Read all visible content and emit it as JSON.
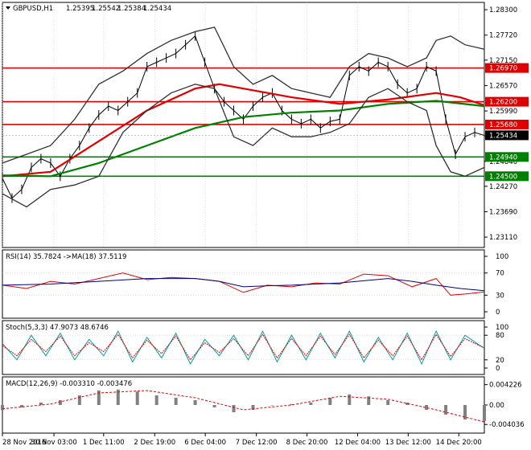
{
  "chart_data": [
    {
      "type": "line",
      "pane": "price",
      "title": "GBPUSD,H1",
      "ohlc": {
        "open": "1.25395",
        "high": "1.25542",
        "low": "1.25384",
        "close": "1.25434"
      },
      "y_tick_labels": [
        "1.28300",
        "1.27720",
        "1.27150",
        "1.26570",
        "1.25990",
        "1.25420",
        "1.24840",
        "1.24270",
        "1.23690",
        "1.23110"
      ],
      "ylim": [
        1.2302,
        1.2832
      ],
      "current_price": 1.25434,
      "current_price_label": "1.25434",
      "level_color_red": "#e00000",
      "level_color_green": "#008000",
      "horizontal_levels": [
        {
          "value": 1.2697,
          "label": "1.26970",
          "color": "#e00000"
        },
        {
          "value": 1.262,
          "label": "1.26200",
          "color": "#e00000"
        },
        {
          "value": 1.2568,
          "label": "1.25680",
          "color": "#e00000"
        },
        {
          "value": 1.2494,
          "label": "1.24940",
          "color": "#008000"
        },
        {
          "value": 1.245,
          "label": "1.24500",
          "color": "#008000"
        }
      ],
      "x_tick_labels": [
        "28 Nov 2016",
        "30 Nov 03:00",
        "1 Dec 11:00",
        "2 Dec 19:00",
        "6 Dec 04:00",
        "7 Dec 12:00",
        "8 Dec 20:00",
        "12 Dec 04:00",
        "13 Dec 12:00",
        "14 Dec 20:00"
      ],
      "x_tick_pos": [
        0,
        0.107,
        0.21,
        0.316,
        0.421,
        0.527,
        0.632,
        0.737,
        0.842,
        0.947
      ],
      "series": [
        {
          "kind": "close",
          "color": "#000000",
          "x": [
            0,
            0.02,
            0.04,
            0.06,
            0.08,
            0.1,
            0.12,
            0.14,
            0.16,
            0.18,
            0.2,
            0.22,
            0.24,
            0.26,
            0.28,
            0.3,
            0.32,
            0.34,
            0.36,
            0.38,
            0.4,
            0.42,
            0.44,
            0.46,
            0.48,
            0.5,
            0.52,
            0.54,
            0.56,
            0.58,
            0.6,
            0.62,
            0.64,
            0.66,
            0.68,
            0.7,
            0.72,
            0.74,
            0.76,
            0.78,
            0.8,
            0.82,
            0.84,
            0.86,
            0.88,
            0.9,
            0.92,
            0.94,
            0.96,
            0.98,
            1.0
          ],
          "y": [
            1.2445,
            1.24,
            1.242,
            1.247,
            1.249,
            1.248,
            1.245,
            1.249,
            1.252,
            1.256,
            1.259,
            1.261,
            1.26,
            1.262,
            1.264,
            1.27,
            1.271,
            1.272,
            1.273,
            1.275,
            1.277,
            1.271,
            1.265,
            1.262,
            1.26,
            1.258,
            1.261,
            1.263,
            1.264,
            1.26,
            1.258,
            1.257,
            1.258,
            1.256,
            1.2575,
            1.258,
            1.268,
            1.27,
            1.269,
            1.271,
            1.27,
            1.266,
            1.264,
            1.265,
            1.27,
            1.269,
            1.258,
            1.25,
            1.254,
            1.255,
            1.2543
          ]
        },
        {
          "kind": "ma",
          "name": "",
          "color": "#e00000",
          "x": [
            0,
            0.1,
            0.2,
            0.3,
            0.4,
            0.45,
            0.5,
            0.6,
            0.7,
            0.8,
            0.9,
            0.95,
            1.0
          ],
          "y": [
            1.245,
            1.246,
            1.253,
            1.26,
            1.265,
            1.266,
            1.265,
            1.263,
            1.2615,
            1.2625,
            1.264,
            1.263,
            1.2612
          ]
        },
        {
          "kind": "ma",
          "name": "",
          "color": "#008000",
          "x": [
            0,
            0.1,
            0.2,
            0.3,
            0.4,
            0.5,
            0.6,
            0.7,
            0.8,
            0.9,
            1.0
          ],
          "y": [
            1.2452,
            1.245,
            1.248,
            1.252,
            1.256,
            1.2585,
            1.2595,
            1.26,
            1.2615,
            1.2622,
            1.261
          ]
        },
        {
          "kind": "bollinger_upper",
          "color": "#303030",
          "x": [
            0,
            0.05,
            0.1,
            0.15,
            0.2,
            0.25,
            0.3,
            0.35,
            0.4,
            0.44,
            0.48,
            0.52,
            0.56,
            0.6,
            0.64,
            0.68,
            0.72,
            0.76,
            0.8,
            0.84,
            0.88,
            0.9,
            0.93,
            0.96,
            1.0
          ],
          "y": [
            1.248,
            1.25,
            1.252,
            1.258,
            1.266,
            1.269,
            1.273,
            1.276,
            1.278,
            1.279,
            1.27,
            1.266,
            1.268,
            1.265,
            1.264,
            1.263,
            1.27,
            1.273,
            1.272,
            1.27,
            1.272,
            1.276,
            1.277,
            1.275,
            1.274
          ]
        },
        {
          "kind": "bollinger_lower",
          "color": "#303030",
          "x": [
            0,
            0.05,
            0.1,
            0.15,
            0.2,
            0.25,
            0.3,
            0.35,
            0.4,
            0.44,
            0.48,
            0.52,
            0.56,
            0.6,
            0.64,
            0.68,
            0.72,
            0.76,
            0.8,
            0.84,
            0.88,
            0.9,
            0.93,
            0.96,
            1.0
          ],
          "y": [
            1.241,
            1.238,
            1.242,
            1.243,
            1.245,
            1.255,
            1.26,
            1.264,
            1.266,
            1.265,
            1.254,
            1.252,
            1.256,
            1.254,
            1.254,
            1.255,
            1.257,
            1.263,
            1.265,
            1.262,
            1.26,
            1.252,
            1.246,
            1.245,
            1.247
          ]
        }
      ]
    },
    {
      "type": "line",
      "pane": "rsi",
      "title": "RSI(14) 35.7824  ->MA(18) 37.5119",
      "y_tick_labels": [
        "100",
        "70",
        "30",
        "0"
      ],
      "y_tick_values": [
        100,
        70,
        30,
        0
      ],
      "ylim": [
        0,
        100
      ],
      "series": [
        {
          "kind": "rsi",
          "color": "#e00000",
          "x": [
            0,
            0.05,
            0.1,
            0.15,
            0.2,
            0.25,
            0.3,
            0.35,
            0.4,
            0.45,
            0.5,
            0.55,
            0.6,
            0.65,
            0.7,
            0.75,
            0.8,
            0.85,
            0.9,
            0.93,
            0.96,
            1.0
          ],
          "y": [
            48,
            42,
            55,
            50,
            60,
            70,
            58,
            62,
            60,
            55,
            35,
            48,
            45,
            52,
            50,
            68,
            65,
            45,
            60,
            30,
            32,
            36
          ]
        },
        {
          "kind": "rsi_ma",
          "color": "#000080",
          "x": [
            0,
            0.1,
            0.2,
            0.3,
            0.4,
            0.45,
            0.5,
            0.55,
            0.6,
            0.7,
            0.8,
            0.85,
            0.9,
            0.95,
            1.0
          ],
          "y": [
            48,
            50,
            55,
            60,
            60,
            55,
            45,
            47,
            48,
            52,
            60,
            55,
            48,
            42,
            38
          ]
        }
      ]
    },
    {
      "type": "line",
      "pane": "stoch",
      "title": "Stoch(5,3,3) 47.9073 48.6746",
      "y_tick_labels": [
        "100",
        "80",
        "20",
        "0"
      ],
      "y_tick_values": [
        100,
        80,
        20,
        0
      ],
      "ylim": [
        0,
        100
      ],
      "series": [
        {
          "kind": "stoch_main",
          "color": "#00a0a0",
          "x": [
            0,
            0.03,
            0.06,
            0.09,
            0.12,
            0.15,
            0.18,
            0.21,
            0.24,
            0.27,
            0.3,
            0.33,
            0.36,
            0.39,
            0.42,
            0.45,
            0.48,
            0.51,
            0.54,
            0.57,
            0.6,
            0.63,
            0.66,
            0.69,
            0.72,
            0.75,
            0.78,
            0.81,
            0.84,
            0.87,
            0.9,
            0.93,
            0.96,
            1.0
          ],
          "y": [
            60,
            20,
            80,
            30,
            85,
            20,
            70,
            30,
            90,
            15,
            75,
            25,
            85,
            10,
            70,
            30,
            80,
            20,
            90,
            15,
            80,
            20,
            85,
            25,
            90,
            15,
            75,
            20,
            85,
            10,
            90,
            20,
            80,
            48
          ]
        },
        {
          "kind": "stoch_signal",
          "color": "#e00000",
          "x": [
            0,
            0.03,
            0.06,
            0.09,
            0.12,
            0.15,
            0.18,
            0.21,
            0.24,
            0.27,
            0.3,
            0.33,
            0.36,
            0.39,
            0.42,
            0.45,
            0.48,
            0.51,
            0.54,
            0.57,
            0.6,
            0.63,
            0.66,
            0.69,
            0.72,
            0.75,
            0.78,
            0.81,
            0.84,
            0.87,
            0.9,
            0.93,
            0.96,
            1.0
          ],
          "y": [
            55,
            30,
            70,
            40,
            78,
            30,
            62,
            40,
            82,
            25,
            68,
            35,
            78,
            20,
            62,
            38,
            72,
            30,
            82,
            25,
            72,
            30,
            78,
            33,
            82,
            25,
            68,
            30,
            78,
            20,
            82,
            28,
            72,
            49
          ]
        }
      ]
    },
    {
      "type": "bar",
      "pane": "macd",
      "title": "MACD(12,26,9) -0.003310 -0.003476",
      "y_tick_labels": [
        "0.004226",
        "0.00",
        "-0.004036"
      ],
      "y_tick_values": [
        0.004226,
        0.0,
        -0.004036
      ],
      "ylim": [
        -0.0045,
        0.0045
      ],
      "histogram": {
        "color": "#808080",
        "x": [
          0,
          0.04,
          0.08,
          0.12,
          0.16,
          0.2,
          0.24,
          0.28,
          0.32,
          0.36,
          0.4,
          0.44,
          0.48,
          0.52,
          0.56,
          0.6,
          0.64,
          0.68,
          0.72,
          0.76,
          0.8,
          0.84,
          0.88,
          0.92,
          0.96,
          1.0
        ],
        "values": [
          -0.001,
          -0.0005,
          0.0005,
          0.001,
          0.002,
          0.003,
          0.0032,
          0.0028,
          0.002,
          0.0015,
          0.001,
          -0.0005,
          -0.0015,
          -0.001,
          0.0,
          0.0002,
          0.0005,
          0.0015,
          0.0022,
          0.0018,
          0.001,
          0.0005,
          -0.001,
          -0.002,
          -0.003,
          -0.0033
        ]
      },
      "signal": {
        "color": "#e00000",
        "x": [
          0,
          0.1,
          0.2,
          0.3,
          0.4,
          0.5,
          0.6,
          0.7,
          0.8,
          0.9,
          1.0
        ],
        "y": [
          -0.0008,
          0.0002,
          0.0025,
          0.003,
          0.0015,
          -0.001,
          0.0,
          0.0018,
          0.0012,
          -0.001,
          -0.0035
        ]
      }
    }
  ]
}
